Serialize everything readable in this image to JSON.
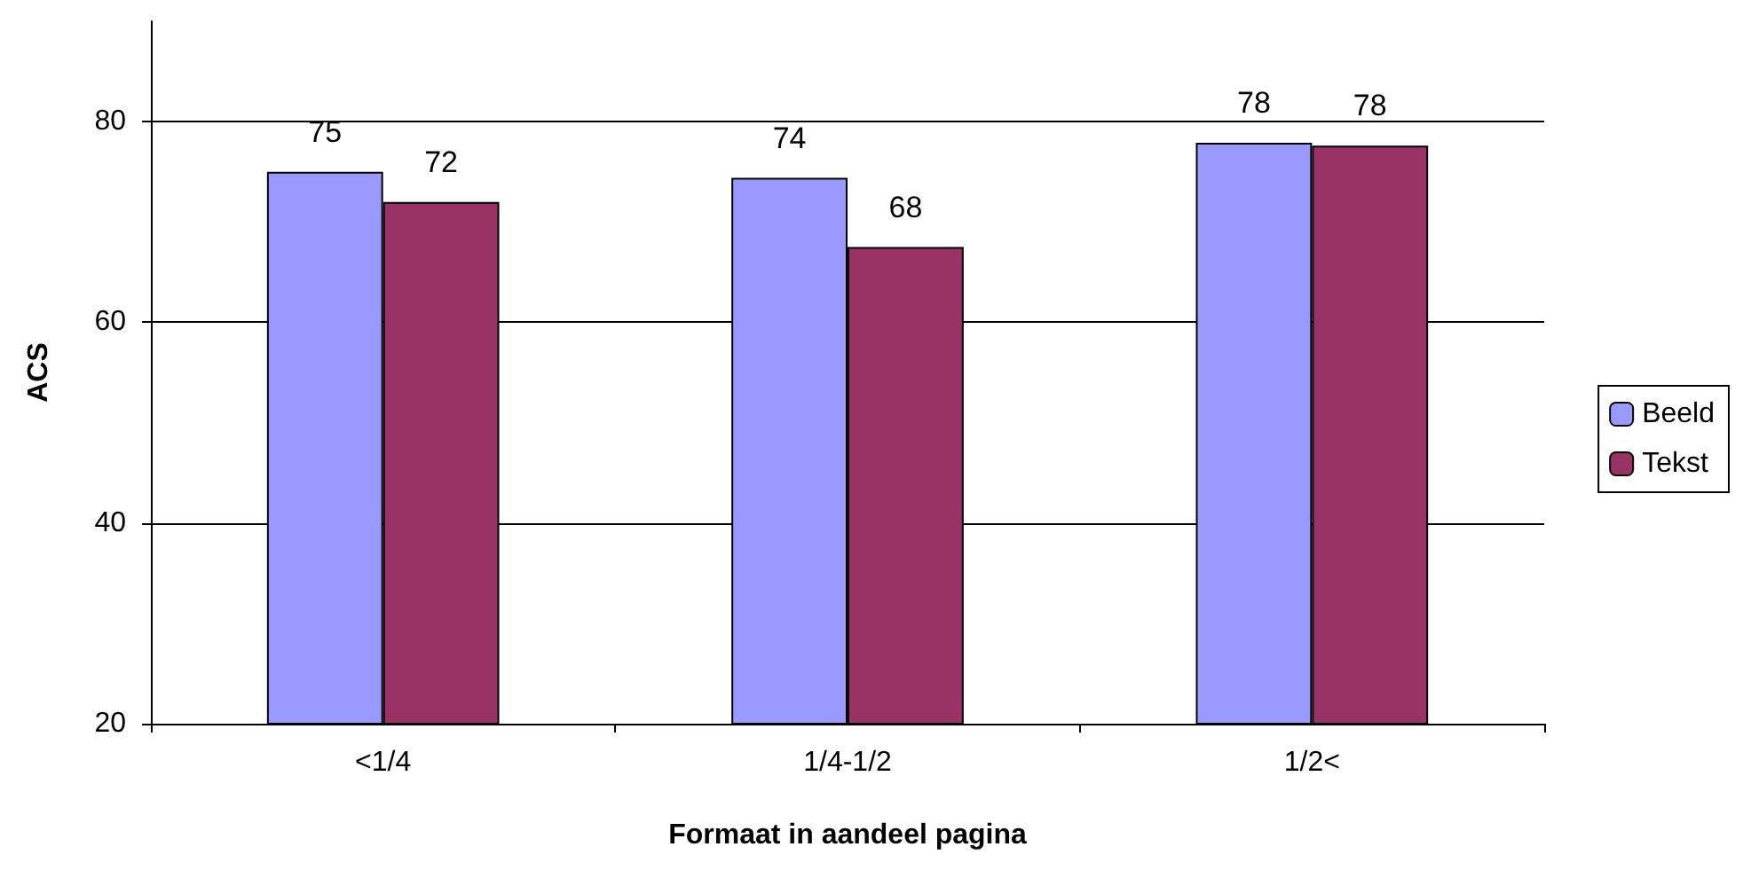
{
  "chart_data": {
    "type": "bar",
    "xlabel": "Formaat in aandeel pagina",
    "ylabel": "ACS",
    "categories": [
      "<1/4",
      "1/4-1/2",
      "1/2<"
    ],
    "series": [
      {
        "name": "Beeld",
        "color": "#9999ff",
        "values": [
          75,
          74.4,
          77.9
        ],
        "value_labels": [
          "75",
          "74",
          "78"
        ]
      },
      {
        "name": "Tekst",
        "color": "#993366",
        "values": [
          72,
          67.5,
          77.6
        ],
        "value_labels": [
          "72",
          "68",
          "78"
        ]
      }
    ],
    "ylim": [
      20,
      90
    ],
    "yticks": [
      20,
      40,
      60,
      80
    ],
    "grid": "y",
    "legend": "right"
  }
}
